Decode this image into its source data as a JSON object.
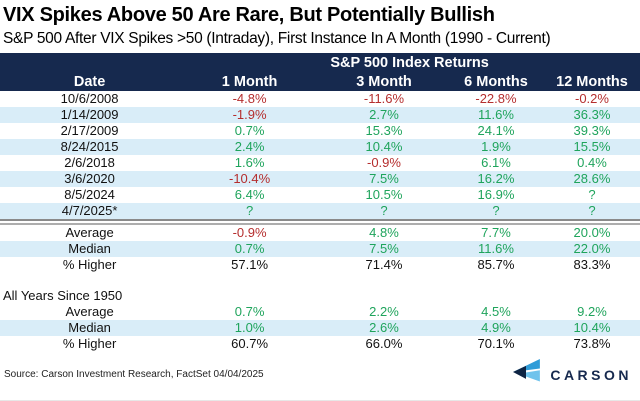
{
  "header": {
    "title": "VIX Spikes Above 50 Are Rare, But Potentially Bullish",
    "subtitle": "S&P 500 After VIX Spikes >50 (Intraday), First Instance In A Month (1990 - Current)"
  },
  "table": {
    "span_header": "S&P 500 Index Returns",
    "columns": [
      "Date",
      "1 Month",
      "3 Month",
      "6 Months",
      "12 Months"
    ],
    "rows": [
      {
        "label": "10/6/2008",
        "values": [
          "-4.8%",
          "-11.6%",
          "-22.8%",
          "-0.2%"
        ],
        "colored": true
      },
      {
        "label": "1/14/2009",
        "values": [
          "-1.9%",
          "2.7%",
          "11.6%",
          "36.3%"
        ],
        "colored": true
      },
      {
        "label": "2/17/2009",
        "values": [
          "0.7%",
          "15.3%",
          "24.1%",
          "39.3%"
        ],
        "colored": true
      },
      {
        "label": "8/24/2015",
        "values": [
          "2.4%",
          "10.4%",
          "1.9%",
          "15.5%"
        ],
        "colored": true
      },
      {
        "label": "2/6/2018",
        "values": [
          "1.6%",
          "-0.9%",
          "6.1%",
          "0.4%"
        ],
        "colored": true
      },
      {
        "label": "3/6/2020",
        "values": [
          "-10.4%",
          "7.5%",
          "16.2%",
          "28.6%"
        ],
        "colored": true
      },
      {
        "label": "8/5/2024",
        "values": [
          "6.4%",
          "10.5%",
          "16.9%",
          "?"
        ],
        "colored": true
      },
      {
        "label": "4/7/2025*",
        "values": [
          "?",
          "?",
          "?",
          "?"
        ],
        "colored": true
      }
    ],
    "summary_rows": [
      {
        "label": "Average",
        "values": [
          "-0.9%",
          "4.8%",
          "7.7%",
          "20.0%"
        ],
        "colored": true
      },
      {
        "label": "Median",
        "values": [
          "0.7%",
          "7.5%",
          "11.6%",
          "22.0%"
        ],
        "colored": true
      },
      {
        "label": "% Higher",
        "values": [
          "57.1%",
          "71.4%",
          "85.7%",
          "83.3%"
        ],
        "colored": false
      }
    ],
    "section2": {
      "label": "All Years Since 1950",
      "rows": [
        {
          "label": "Average",
          "values": [
            "0.7%",
            "2.2%",
            "4.5%",
            "9.2%"
          ],
          "colored": true
        },
        {
          "label": "Median",
          "values": [
            "1.0%",
            "2.6%",
            "4.9%",
            "10.4%"
          ],
          "colored": true
        },
        {
          "label": "% Higher",
          "values": [
            "60.7%",
            "66.0%",
            "70.1%",
            "73.8%"
          ],
          "colored": false
        }
      ]
    }
  },
  "footer": {
    "source": "Source: Carson Investment Research, FactSet 04/04/2025",
    "brand": "CARSON"
  },
  "colors": {
    "header_navy": "#16294E",
    "row_stripe": "#D9EDF8",
    "positive_green": "#1FA45C",
    "negative_red": "#B52E2E",
    "logo_blue": "#2F9CD8",
    "logo_light_blue": "#70C3EC",
    "logo_navy": "#0E2443"
  },
  "chart_data": {
    "type": "table",
    "title": "VIX Spikes Above 50 Are Rare, But Potentially Bullish",
    "subtitle": "S&P 500 After VIX Spikes >50 (Intraday), First Instance In A Month (1990 - Current)",
    "group_header": "S&P 500 Index Returns",
    "columns": [
      "Date",
      "1 Month",
      "3 Month",
      "6 Months",
      "12 Months"
    ],
    "rows": [
      [
        "10/6/2008",
        "-4.8%",
        "-11.6%",
        "-22.8%",
        "-0.2%"
      ],
      [
        "1/14/2009",
        "-1.9%",
        "2.7%",
        "11.6%",
        "36.3%"
      ],
      [
        "2/17/2009",
        "0.7%",
        "15.3%",
        "24.1%",
        "39.3%"
      ],
      [
        "8/24/2015",
        "2.4%",
        "10.4%",
        "1.9%",
        "15.5%"
      ],
      [
        "2/6/2018",
        "1.6%",
        "-0.9%",
        "6.1%",
        "0.4%"
      ],
      [
        "3/6/2020",
        "-10.4%",
        "7.5%",
        "16.2%",
        "28.6%"
      ],
      [
        "8/5/2024",
        "6.4%",
        "10.5%",
        "16.9%",
        "?"
      ],
      [
        "4/7/2025*",
        "?",
        "?",
        "?",
        "?"
      ]
    ],
    "summary": [
      [
        "Average",
        "-0.9%",
        "4.8%",
        "7.7%",
        "20.0%"
      ],
      [
        "Median",
        "0.7%",
        "7.5%",
        "11.6%",
        "22.0%"
      ],
      [
        "% Higher",
        "57.1%",
        "71.4%",
        "85.7%",
        "83.3%"
      ]
    ],
    "all_years_since_1950": [
      [
        "Average",
        "0.7%",
        "2.2%",
        "4.5%",
        "9.2%"
      ],
      [
        "Median",
        "1.0%",
        "2.6%",
        "4.9%",
        "10.4%"
      ],
      [
        "% Higher",
        "60.7%",
        "66.0%",
        "70.1%",
        "73.8%"
      ]
    ]
  }
}
